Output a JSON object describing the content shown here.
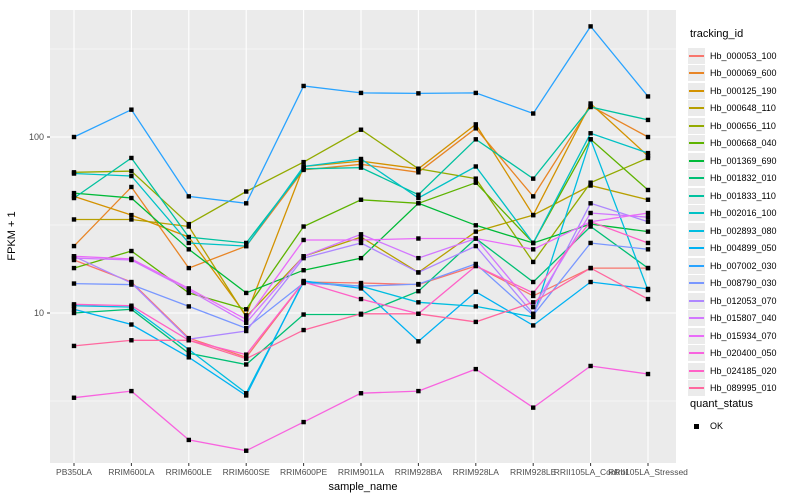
{
  "chart_data": {
    "type": "line",
    "scale": "log10",
    "xlabel": "sample_name",
    "ylabel": "FPKM + 1",
    "legend_title": "tracking_id",
    "legend2_title": "quant_status",
    "quant_status_items": [
      {
        "label": "OK",
        "marker": "black-square"
      }
    ],
    "categories": [
      "PB350LA",
      "RRIM600LA",
      "RRIM600LE",
      "RRIM600SE",
      "RRIM600PE",
      "RRIM901LA",
      "RRIM928BA",
      "RRIM928LA",
      "RRIM928LE",
      "RRII105LA_Control",
      "RRII105LA_Stressed"
    ],
    "yticks": [
      10,
      100
    ],
    "minor_ticks": [
      3.162,
      31.62,
      316.2
    ],
    "ylim": [
      1.45,
      530
    ],
    "panel_bg": "#ebebeb",
    "grid_color": "#ffffff",
    "axis_text_color": "#4d4d4d",
    "point_marker": "black-square",
    "series": [
      {
        "name": "Hb_000053_100",
        "color": "#F8766D",
        "values": [
          20,
          15,
          7.2,
          5.6,
          15,
          14.8,
          14.5,
          18.5,
          12.5,
          18,
          18
        ]
      },
      {
        "name": "Hb_000069_600",
        "color": "#E88526",
        "values": [
          24,
          52,
          18,
          24,
          65,
          70,
          63,
          112,
          46,
          150,
          100
        ]
      },
      {
        "name": "Hb_000125_190",
        "color": "#D39200",
        "values": [
          46,
          36,
          27,
          9.7,
          68,
          73,
          66,
          118,
          36,
          155,
          78
        ]
      },
      {
        "name": "Hb_000648_110",
        "color": "#B79F00",
        "values": [
          34,
          34,
          31,
          9.5,
          21,
          27,
          17,
          29,
          36,
          53,
          44
        ]
      },
      {
        "name": "Hb_000656_110",
        "color": "#93AA00",
        "values": [
          63,
          64,
          32,
          49,
          72,
          110,
          66,
          58,
          19.5,
          55,
          76
        ]
      },
      {
        "name": "Hb_000668_040",
        "color": "#5EB300",
        "values": [
          18,
          22.5,
          13,
          10.5,
          31,
          44,
          42,
          55,
          25,
          97,
          50
        ]
      },
      {
        "name": "Hb_001369_690",
        "color": "#00BA38",
        "values": [
          48,
          45,
          23,
          13,
          17.5,
          20.5,
          42,
          31.5,
          25,
          32,
          29
        ]
      },
      {
        "name": "Hb_001832_010",
        "color": "#00BF74",
        "values": [
          10,
          10.5,
          5.9,
          5.1,
          9.8,
          9.8,
          13.3,
          26.5,
          15,
          31,
          18
        ]
      },
      {
        "name": "Hb_001833_110",
        "color": "#00C19F",
        "values": [
          45,
          76,
          27,
          25,
          66,
          67,
          47,
          97,
          58,
          148,
          125
        ]
      },
      {
        "name": "Hb_002016_100",
        "color": "#00C1C5",
        "values": [
          62,
          60,
          25,
          24,
          68,
          75,
          45,
          68,
          25,
          105,
          81
        ]
      },
      {
        "name": "Hb_002893_080",
        "color": "#00BDE0",
        "values": [
          11,
          10.8,
          6.2,
          3.5,
          15,
          14.2,
          11.5,
          10.9,
          9.5,
          97,
          13.5
        ]
      },
      {
        "name": "Hb_004899_050",
        "color": "#00B2F3",
        "values": [
          10.5,
          8.6,
          5.6,
          3.4,
          15.2,
          13.8,
          6.9,
          13.2,
          8.5,
          15,
          13.7
        ]
      },
      {
        "name": "Hb_007002_030",
        "color": "#29A3FF",
        "values": [
          100,
          143,
          46,
          42,
          195,
          178,
          177,
          178,
          136,
          425,
          170
        ]
      },
      {
        "name": "Hb_008790_030",
        "color": "#7997FF",
        "values": [
          14.7,
          14.5,
          10.9,
          8.2,
          14.8,
          14.2,
          14.6,
          19,
          9.7,
          25,
          23
        ]
      },
      {
        "name": "Hb_012053_070",
        "color": "#AE87FF",
        "values": [
          21,
          14.8,
          7.1,
          7.9,
          20.5,
          25,
          17,
          24,
          9.9,
          42,
          33
        ]
      },
      {
        "name": "Hb_015807_040",
        "color": "#D277FF",
        "values": [
          20.5,
          20,
          13.5,
          8.8,
          21,
          28,
          20.5,
          26.5,
          10.8,
          37,
          35
        ]
      },
      {
        "name": "Hb_015934_070",
        "color": "#E96BF9",
        "values": [
          21,
          20.3,
          13.8,
          9.2,
          26,
          26,
          26.5,
          26.5,
          23,
          33,
          37
        ]
      },
      {
        "name": "Hb_020400_050",
        "color": "#F863DF",
        "values": [
          3.3,
          3.6,
          1.9,
          1.65,
          2.4,
          3.5,
          3.6,
          4.8,
          2.9,
          5.0,
          4.5
        ]
      },
      {
        "name": "Hb_024185_020",
        "color": "#FF61C7",
        "values": [
          11.2,
          11,
          7.0,
          5.8,
          15,
          12,
          9.9,
          18.5,
          13,
          33,
          25
        ]
      },
      {
        "name": "Hb_089995_010",
        "color": "#FF689F",
        "values": [
          6.5,
          7.0,
          7.0,
          5.5,
          8.0,
          9.9,
          9.9,
          8.9,
          11.5,
          18,
          12
        ]
      }
    ]
  }
}
